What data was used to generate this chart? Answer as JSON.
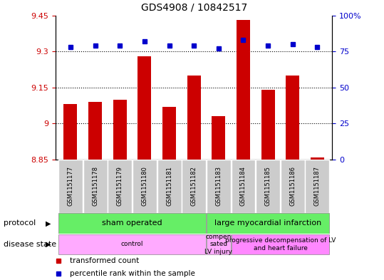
{
  "title": "GDS4908 / 10842517",
  "samples": [
    "GSM1151177",
    "GSM1151178",
    "GSM1151179",
    "GSM1151180",
    "GSM1151181",
    "GSM1151182",
    "GSM1151183",
    "GSM1151184",
    "GSM1151185",
    "GSM1151186",
    "GSM1151187"
  ],
  "bar_values": [
    9.08,
    9.09,
    9.1,
    9.28,
    9.07,
    9.2,
    9.03,
    9.43,
    9.14,
    9.2,
    8.86
  ],
  "dot_values": [
    78,
    79,
    79,
    82,
    79,
    79,
    77,
    83,
    79,
    80,
    78
  ],
  "bar_color": "#cc0000",
  "dot_color": "#0000cc",
  "ylim_left": [
    8.85,
    9.45
  ],
  "ylim_right": [
    0,
    100
  ],
  "yticks_left": [
    8.85,
    9.0,
    9.15,
    9.3,
    9.45
  ],
  "yticks_right": [
    0,
    25,
    50,
    75,
    100
  ],
  "ytick_labels_left": [
    "8.85",
    "9",
    "9.15",
    "9.3",
    "9.45"
  ],
  "ytick_labels_right": [
    "0",
    "25",
    "50",
    "75",
    "100%"
  ],
  "hlines": [
    9.0,
    9.15,
    9.3
  ],
  "protocol_groups": [
    {
      "label": "sham operated",
      "start": 0,
      "end": 5,
      "color": "#66ee66"
    },
    {
      "label": "large myocardial infarction",
      "start": 6,
      "end": 10,
      "color": "#66ee66"
    }
  ],
  "disease_groups": [
    {
      "label": "control",
      "start": 0,
      "end": 5,
      "color": "#ffaaff"
    },
    {
      "label": "compen\nsated\nLV injury",
      "start": 6,
      "end": 6,
      "color": "#ffaaff"
    },
    {
      "label": "progressive decompensation of LV\nand heart failure",
      "start": 7,
      "end": 10,
      "color": "#ff88ff"
    }
  ],
  "legend_items": [
    {
      "label": "transformed count",
      "color": "#cc0000"
    },
    {
      "label": "percentile rank within the sample",
      "color": "#0000cc"
    }
  ],
  "protocol_label": "protocol",
  "disease_label": "disease state",
  "fig_bg": "#ffffff",
  "plot_bg": "#ffffff"
}
